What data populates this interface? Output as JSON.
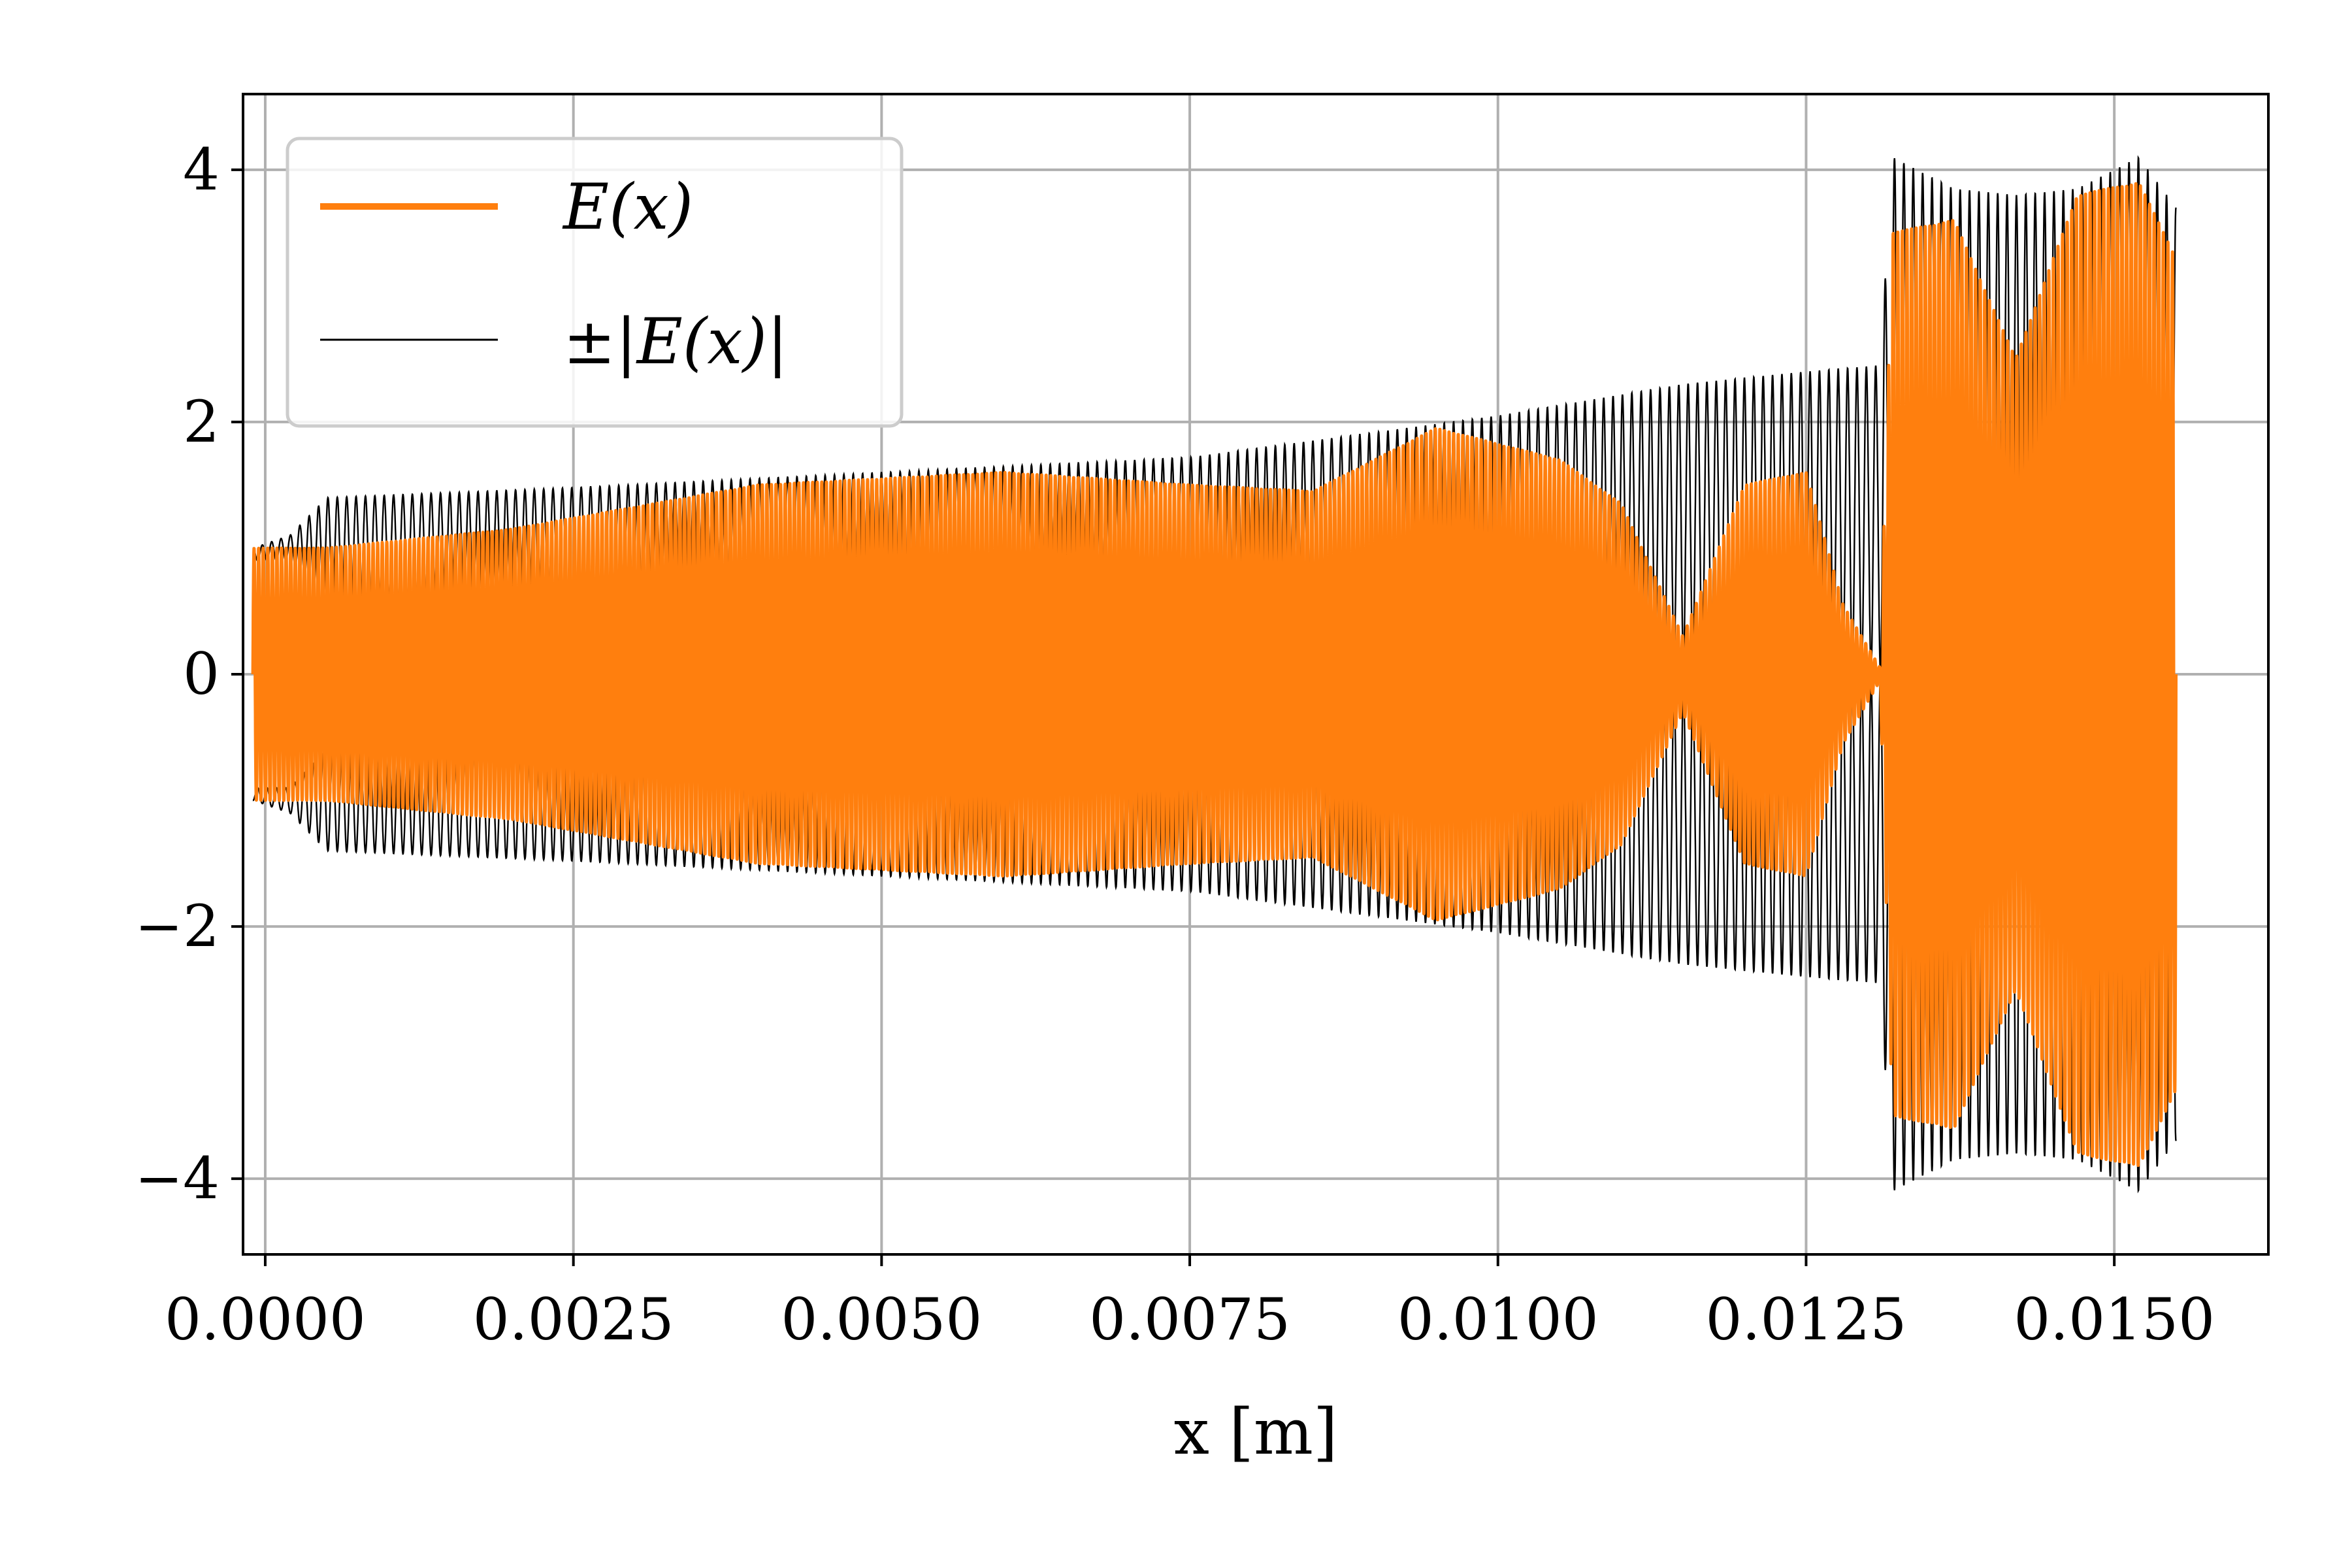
{
  "chart_data": {
    "type": "line",
    "title": "",
    "xlabel": "x [m]",
    "ylabel": "",
    "xlim": [
      -0.00018,
      0.01625
    ],
    "ylim": [
      -4.6,
      4.6
    ],
    "x_ticks": [
      0.0,
      0.0025,
      0.005,
      0.0075,
      0.01,
      0.0125,
      0.015
    ],
    "x_tick_labels": [
      "0.0000",
      "0.0025",
      "0.0050",
      "0.0075",
      "0.0100",
      "0.0125",
      "0.0150"
    ],
    "y_ticks": [
      -4,
      -2,
      0,
      2,
      4
    ],
    "y_tick_labels": [
      "−4",
      "−2",
      "0",
      "2",
      "4"
    ],
    "grid": true,
    "legend_position": "upper-left",
    "series": [
      {
        "name": "E(x)",
        "color": "#ff7f0e",
        "style": "dense oscillation, envelope values (peak amplitude)",
        "x": [
          -0.0001,
          0.0005,
          0.002,
          0.004,
          0.006,
          0.0075,
          0.0085,
          0.0095,
          0.0105,
          0.011,
          0.0115,
          0.012,
          0.0125,
          0.0128,
          0.0131,
          0.0132,
          0.0137,
          0.0142,
          0.0147,
          0.0152,
          0.0155
        ],
        "envelope": [
          1.0,
          1.0,
          1.15,
          1.5,
          1.6,
          1.5,
          1.45,
          1.95,
          1.7,
          1.35,
          0.3,
          1.5,
          1.6,
          0.55,
          0.05,
          3.5,
          3.6,
          2.5,
          3.8,
          3.9,
          3.3
        ]
      },
      {
        "name": "±|E(x)|",
        "color": "#000000",
        "style": "thin oscillating envelope line, upper bound (lower bound mirrors)",
        "x": [
          -0.0001,
          0.0002,
          0.0005,
          0.0025,
          0.005,
          0.0075,
          0.01,
          0.0115,
          0.0125,
          0.0131,
          0.0132,
          0.0137,
          0.0142,
          0.0147,
          0.0152,
          0.0155
        ],
        "upper": [
          1.0,
          1.1,
          1.4,
          1.48,
          1.6,
          1.72,
          2.05,
          2.3,
          2.4,
          2.45,
          4.1,
          3.85,
          3.8,
          3.85,
          4.1,
          3.7
        ],
        "trough": [
          0.9,
          0.9,
          0.6,
          0.55,
          0.5,
          0.4,
          0.2,
          0.12,
          0.05,
          0.03,
          0.0,
          0.0,
          0.0,
          0.0,
          0.0,
          0.0
        ]
      }
    ]
  }
}
